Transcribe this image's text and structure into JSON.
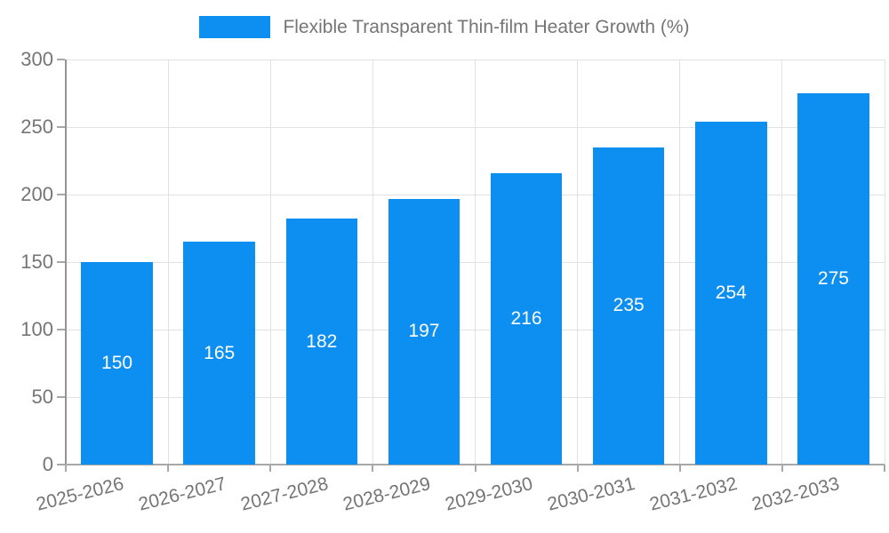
{
  "chart_data": {
    "type": "bar",
    "title": "Flexible Transparent Thin-film Heater Growth (%)",
    "categories": [
      "2025-2026",
      "2026-2027",
      "2027-2028",
      "2028-2029",
      "2029-2030",
      "2030-2031",
      "2031-2032",
      "2032-2033"
    ],
    "values": [
      150,
      165,
      182,
      197,
      216,
      235,
      254,
      275
    ],
    "xlabel": "",
    "ylabel": "",
    "ylim": [
      0,
      300
    ],
    "yticks": [
      0,
      50,
      100,
      150,
      200,
      250,
      300
    ],
    "grid": true,
    "legend_position": "top",
    "x_label_rotation_deg": -14,
    "colors": {
      "bar": "#0d8ff2",
      "value_label": "#ffffff",
      "axis_text": "#757575",
      "grid_line": "#e2e2e2",
      "axis_line": "#a8a8a8",
      "background": "#ffffff"
    }
  }
}
